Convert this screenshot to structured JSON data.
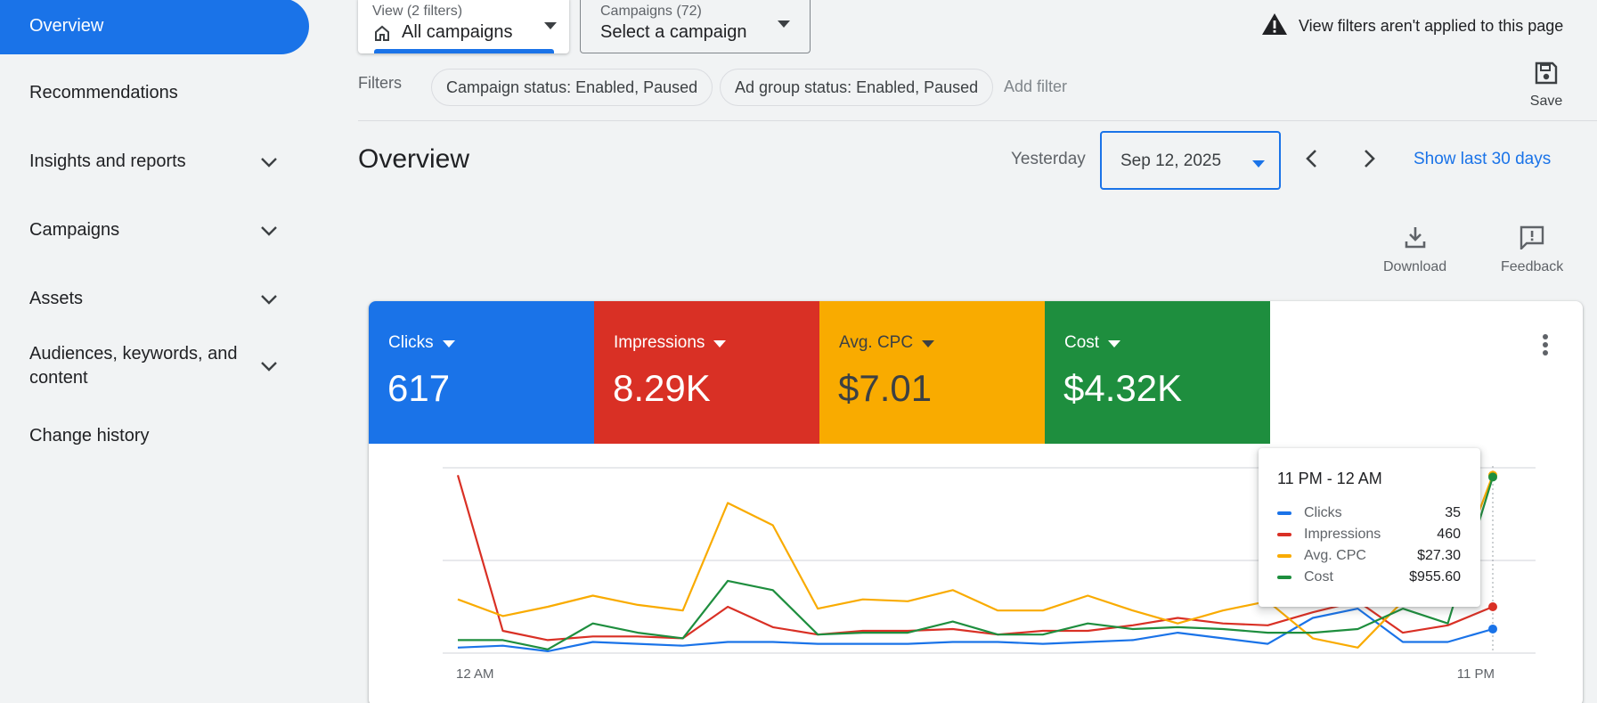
{
  "sidebar": {
    "active": "Overview",
    "items": [
      {
        "label": "Recommendations"
      },
      {
        "label": "Insights and reports"
      },
      {
        "label": "Campaigns"
      },
      {
        "label": "Assets"
      },
      {
        "label": "Audiences, keywords, and content"
      },
      {
        "label": "Change history"
      }
    ]
  },
  "view": {
    "small": "View (2 filters)",
    "main": "All campaigns"
  },
  "campaigns": {
    "small": "Campaigns (72)",
    "main": "Select a campaign"
  },
  "warning": "View filters aren't applied to this page",
  "filters": {
    "label": "Filters",
    "chips": [
      "Campaign status: Enabled, Paused",
      "Ad group status: Enabled, Paused"
    ],
    "add": "Add filter"
  },
  "save_label": "Save",
  "page_title": "Overview",
  "date": {
    "relative": "Yesterday",
    "value": "Sep 12, 2025",
    "show_last": "Show last 30 days"
  },
  "tools": {
    "download": "Download",
    "feedback": "Feedback"
  },
  "metrics": [
    {
      "label": "Clicks",
      "value": "617",
      "color": "#1a73e8"
    },
    {
      "label": "Impressions",
      "value": "8.29K",
      "color": "#d93025"
    },
    {
      "label": "Avg. CPC",
      "value": "$7.01",
      "color": "#f9ab00"
    },
    {
      "label": "Cost",
      "value": "$4.32K",
      "color": "#1e8e3e"
    }
  ],
  "tooltip": {
    "title": "11 PM - 12 AM",
    "rows": [
      {
        "label": "Clicks",
        "value": "35",
        "color": "#1a73e8"
      },
      {
        "label": "Impressions",
        "value": "460",
        "color": "#d93025"
      },
      {
        "label": "Avg. CPC",
        "value": "$27.30",
        "color": "#f9ab00"
      },
      {
        "label": "Cost",
        "value": "$955.60",
        "color": "#1e8e3e"
      }
    ]
  },
  "chart_data": {
    "type": "line",
    "x_labels": [
      "12 AM",
      "11 PM"
    ],
    "x": [
      0,
      1,
      2,
      3,
      4,
      5,
      6,
      7,
      8,
      9,
      10,
      11,
      12,
      13,
      14,
      15,
      16,
      17,
      18,
      19,
      20,
      21,
      22,
      23
    ],
    "series": [
      {
        "name": "Clicks",
        "color": "#1a73e8",
        "values": [
          3,
          4,
          1,
          6,
          5,
          4,
          6,
          6,
          5,
          5,
          5,
          6,
          6,
          5,
          6,
          7,
          11,
          8,
          5,
          19,
          24,
          6,
          6,
          13
        ]
      },
      {
        "name": "Impressions",
        "color": "#d93025",
        "values": [
          96,
          12,
          7,
          9,
          9,
          8,
          25,
          14,
          10,
          12,
          12,
          13,
          10,
          12,
          12,
          15,
          19,
          16,
          15,
          22,
          28,
          11,
          15,
          25
        ]
      },
      {
        "name": "Avg. CPC",
        "color": "#f9ab00",
        "values": [
          29,
          20,
          25,
          31,
          26,
          23,
          81,
          69,
          24,
          29,
          28,
          34,
          23,
          23,
          31,
          23,
          16,
          23,
          28,
          8,
          3,
          28,
          32,
          96
        ]
      },
      {
        "name": "Cost",
        "color": "#1e8e3e",
        "values": [
          7,
          7,
          2,
          16,
          11,
          8,
          39,
          34,
          10,
          11,
          11,
          17,
          10,
          10,
          16,
          13,
          14,
          13,
          11,
          11,
          13,
          24,
          16,
          95
        ]
      }
    ],
    "hover_index": 23,
    "ymax": 100,
    "grid": "horizontal"
  }
}
